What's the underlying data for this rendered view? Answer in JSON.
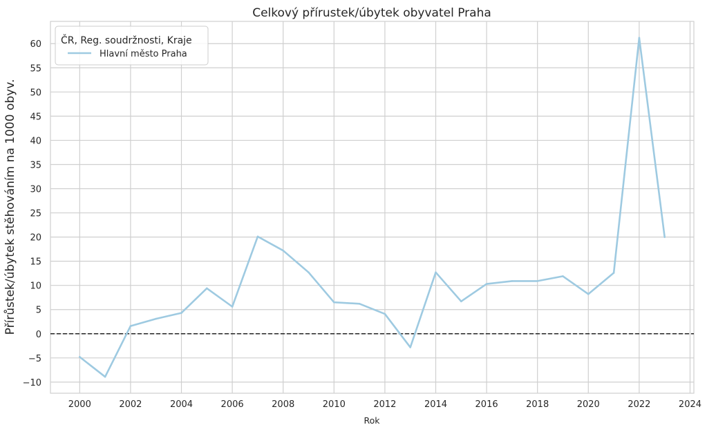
{
  "chart_data": {
    "type": "line",
    "title": "Celkový přírustek/úbytek obyvatel Praha",
    "xlabel": "Rok",
    "ylabel": "Přírůstek/úbytek stěhováním na 1000 obyv.",
    "xlim": [
      1998.85,
      2024.15
    ],
    "ylim": [
      -12.3,
      64.6
    ],
    "xticks": [
      2000,
      2002,
      2004,
      2006,
      2008,
      2010,
      2012,
      2014,
      2016,
      2018,
      2020,
      2022,
      2024
    ],
    "yticks": [
      -10,
      -5,
      0,
      5,
      10,
      15,
      20,
      25,
      30,
      35,
      40,
      45,
      50,
      55,
      60
    ],
    "ytick_labels": [
      "−10",
      "−5",
      "0",
      "5",
      "10",
      "15",
      "20",
      "25",
      "30",
      "35",
      "40",
      "45",
      "50",
      "55",
      "60"
    ],
    "grid": true,
    "reference_line": {
      "y": 0,
      "style": "dashed",
      "color": "#222222"
    },
    "legend": {
      "title": "ČR, Reg. soudržnosti, Kraje",
      "placement": "top-left",
      "entries": [
        "Hlavní město Praha"
      ]
    },
    "series": [
      {
        "name": "Hlavní město Praha",
        "color": "#9ecae1",
        "x": [
          2000,
          2001,
          2002,
          2003,
          2004,
          2005,
          2006,
          2007,
          2008,
          2009,
          2010,
          2011,
          2012,
          2013,
          2014,
          2015,
          2016,
          2017,
          2018,
          2019,
          2020,
          2021,
          2022,
          2023
        ],
        "values": [
          -4.8,
          -8.9,
          1.6,
          3.1,
          4.3,
          9.4,
          5.6,
          20.1,
          17.2,
          12.7,
          6.5,
          6.2,
          4.1,
          -2.8,
          12.7,
          6.7,
          10.3,
          10.9,
          10.9,
          11.9,
          8.2,
          12.6,
          61.2,
          20.0
        ]
      }
    ]
  }
}
